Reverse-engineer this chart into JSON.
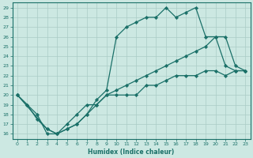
{
  "xlabel": "Humidex (Indice chaleur)",
  "bg_color": "#cce8e2",
  "line_color": "#1a7068",
  "grid_color": "#aaccC6",
  "xlim": [
    -0.5,
    23.5
  ],
  "ylim": [
    15.5,
    29.5
  ],
  "xticks": [
    0,
    1,
    2,
    3,
    4,
    5,
    6,
    7,
    8,
    9,
    10,
    11,
    12,
    13,
    14,
    15,
    16,
    17,
    18,
    19,
    20,
    21,
    22,
    23
  ],
  "yticks": [
    16,
    17,
    18,
    19,
    20,
    21,
    22,
    23,
    24,
    25,
    26,
    27,
    28,
    29
  ],
  "line1_x": [
    0,
    1,
    2,
    3,
    4,
    5,
    6,
    7,
    8,
    9,
    10,
    11,
    12,
    13,
    14,
    15,
    16,
    17,
    18,
    19,
    20,
    21,
    22,
    23
  ],
  "line1_y": [
    20,
    19,
    18,
    16,
    16,
    17,
    18,
    19,
    19,
    20,
    20,
    20,
    20,
    21,
    21,
    21.5,
    22,
    22,
    22,
    22.5,
    22.5,
    22,
    22.5,
    22.5
  ],
  "line2_x": [
    0,
    1,
    2,
    3,
    4,
    5,
    6,
    7,
    8,
    9,
    10,
    11,
    12,
    13,
    14,
    15,
    16,
    17,
    18,
    19,
    20,
    21,
    22,
    23
  ],
  "line2_y": [
    20,
    19,
    17.5,
    16.5,
    16,
    16.5,
    17,
    18,
    19,
    20,
    20.5,
    21,
    21.5,
    22,
    22.5,
    23,
    23.5,
    24,
    24.5,
    25,
    26,
    26,
    23,
    22.5
  ],
  "line3_x": [
    0,
    3,
    4,
    5,
    6,
    7,
    8,
    9,
    10,
    11,
    12,
    13,
    14,
    15,
    16,
    17,
    18,
    19,
    20,
    21,
    22,
    23
  ],
  "line3_y": [
    20,
    16.5,
    16,
    16.5,
    17,
    18,
    19.5,
    20.5,
    26,
    27,
    27.5,
    28,
    28,
    29,
    28,
    28.5,
    29,
    26,
    26,
    23,
    22.5,
    22.5
  ]
}
